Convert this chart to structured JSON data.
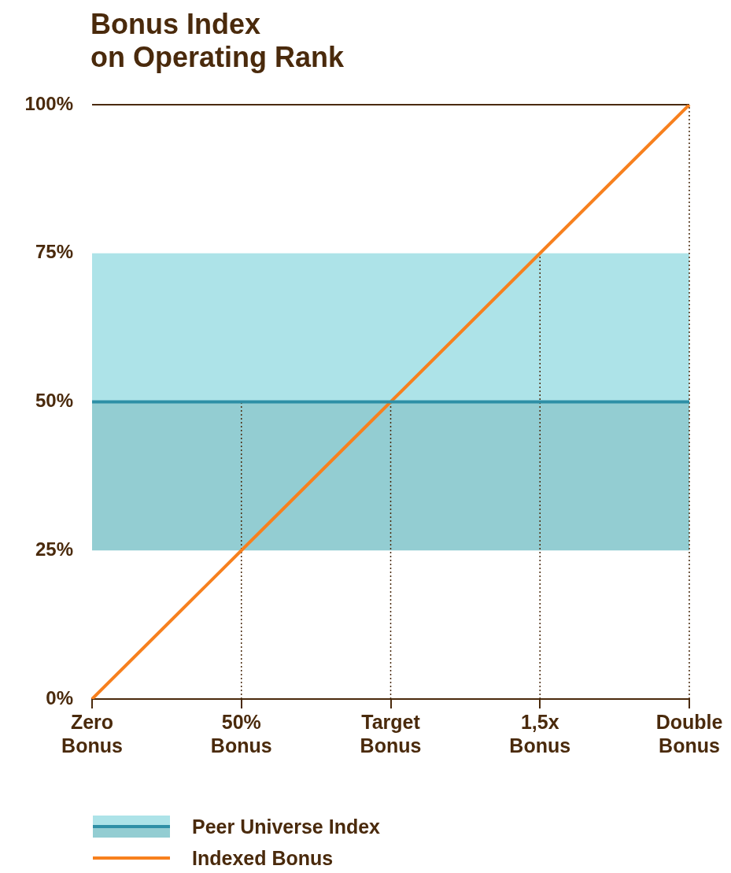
{
  "chart_data": {
    "type": "line",
    "title": "Bonus Index\non Operating Rank",
    "categories": [
      "Zero\nBonus",
      "50%\nBonus",
      "Target\nBonus",
      "1,5x\nBonus",
      "Double\nBonus"
    ],
    "series": [
      {
        "name": "Peer Universe Index",
        "color": "#2e8fa6",
        "values": [
          50,
          50,
          50,
          50,
          50
        ]
      },
      {
        "name": "Indexed Bonus",
        "color": "#f7801e",
        "values": [
          0,
          25,
          50,
          75,
          100
        ]
      }
    ],
    "ylim": [
      0,
      100
    ],
    "yticks": [
      {
        "value": 0,
        "label": "0%"
      },
      {
        "value": 25,
        "label": "25%"
      },
      {
        "value": 50,
        "label": "50%"
      },
      {
        "value": 75,
        "label": "75%"
      },
      {
        "value": 100,
        "label": "100%"
      }
    ],
    "bands": [
      {
        "axis": "y",
        "from": 25,
        "to": 50,
        "color": "#93cdd2"
      },
      {
        "axis": "y",
        "from": 50,
        "to": 75,
        "color": "#ade3e8"
      }
    ],
    "ref_lines": [
      {
        "axis": "y",
        "value": 100,
        "color": "#4a2a0c",
        "line_style": "solid"
      },
      {
        "axis": "x",
        "value": "50%\nBonus",
        "color": "#4a2a0c",
        "line_style": "dotted"
      },
      {
        "axis": "x",
        "value": "Target\nBonus",
        "color": "#4a2a0c",
        "line_style": "dotted"
      },
      {
        "axis": "x",
        "value": "1,5x\nBonus",
        "color": "#4a2a0c",
        "line_style": "dotted"
      },
      {
        "axis": "x",
        "value": "Double\nBonus",
        "color": "#4a2a0c",
        "line_style": "dotted"
      }
    ],
    "grid": false,
    "legend": "bottom left",
    "marker": "none",
    "line_style": "solid"
  }
}
